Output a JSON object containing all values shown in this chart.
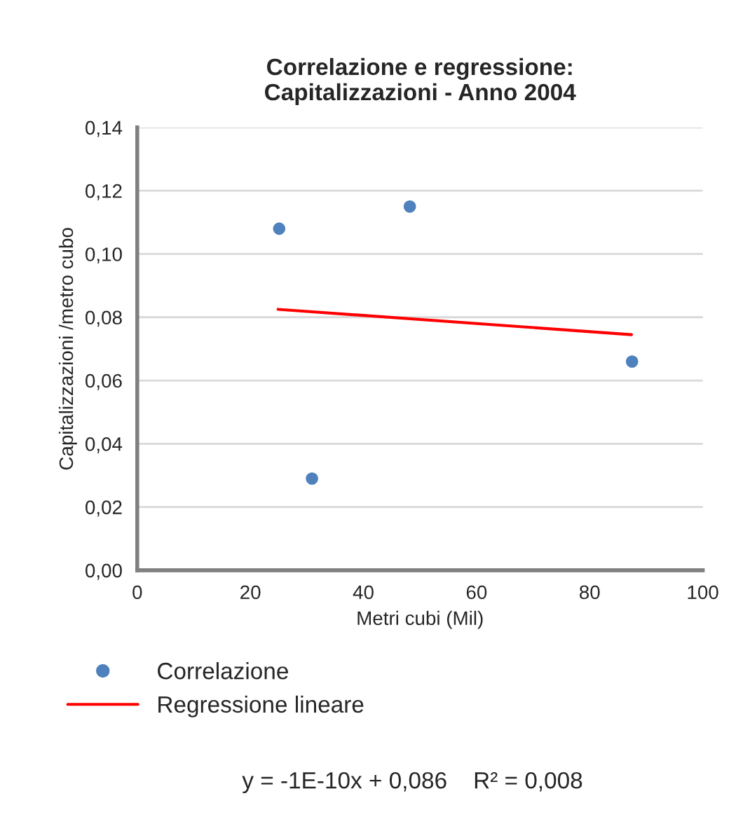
{
  "chart_data": {
    "type": "scatter",
    "title": "Correlazione e regressione:\nCapitalizzazioni - Anno 2004",
    "xlabel": "Metri cubi (Mil)",
    "ylabel": "Capitalizzazioni /metro cubo",
    "series": [
      {
        "name": "Correlazione",
        "color": "#4f81bd",
        "x": [
          25.1,
          30.9,
          48.2,
          87.5
        ],
        "values": [
          0.108,
          0.029,
          0.115,
          0.066
        ],
        "marker": "circle"
      },
      {
        "name": "Regressione lineare",
        "type": "line",
        "color": "#ff0000",
        "x": [
          24.9,
          87.4
        ],
        "values": [
          0.0825,
          0.0745
        ],
        "marker": "none"
      }
    ],
    "xlim": [
      0,
      100
    ],
    "xticks": [
      0,
      20,
      40,
      60,
      80,
      100
    ],
    "ylim": [
      0,
      0.14
    ],
    "yticks": [
      {
        "value": 0,
        "label": "0,00"
      },
      {
        "value": 0.02,
        "label": "0,02"
      },
      {
        "value": 0.04,
        "label": "0,04"
      },
      {
        "value": 0.06,
        "label": "0,06"
      },
      {
        "value": 0.08,
        "label": "0,08"
      },
      {
        "value": 0.1,
        "label": "0,10"
      },
      {
        "value": 0.12,
        "label": "0,12"
      },
      {
        "value": 0.14,
        "label": "0,14"
      }
    ],
    "grid": "y",
    "legend": "bottom",
    "annotations": [
      "y = -1E-10x + 0,086    R² = 0,008"
    ]
  }
}
